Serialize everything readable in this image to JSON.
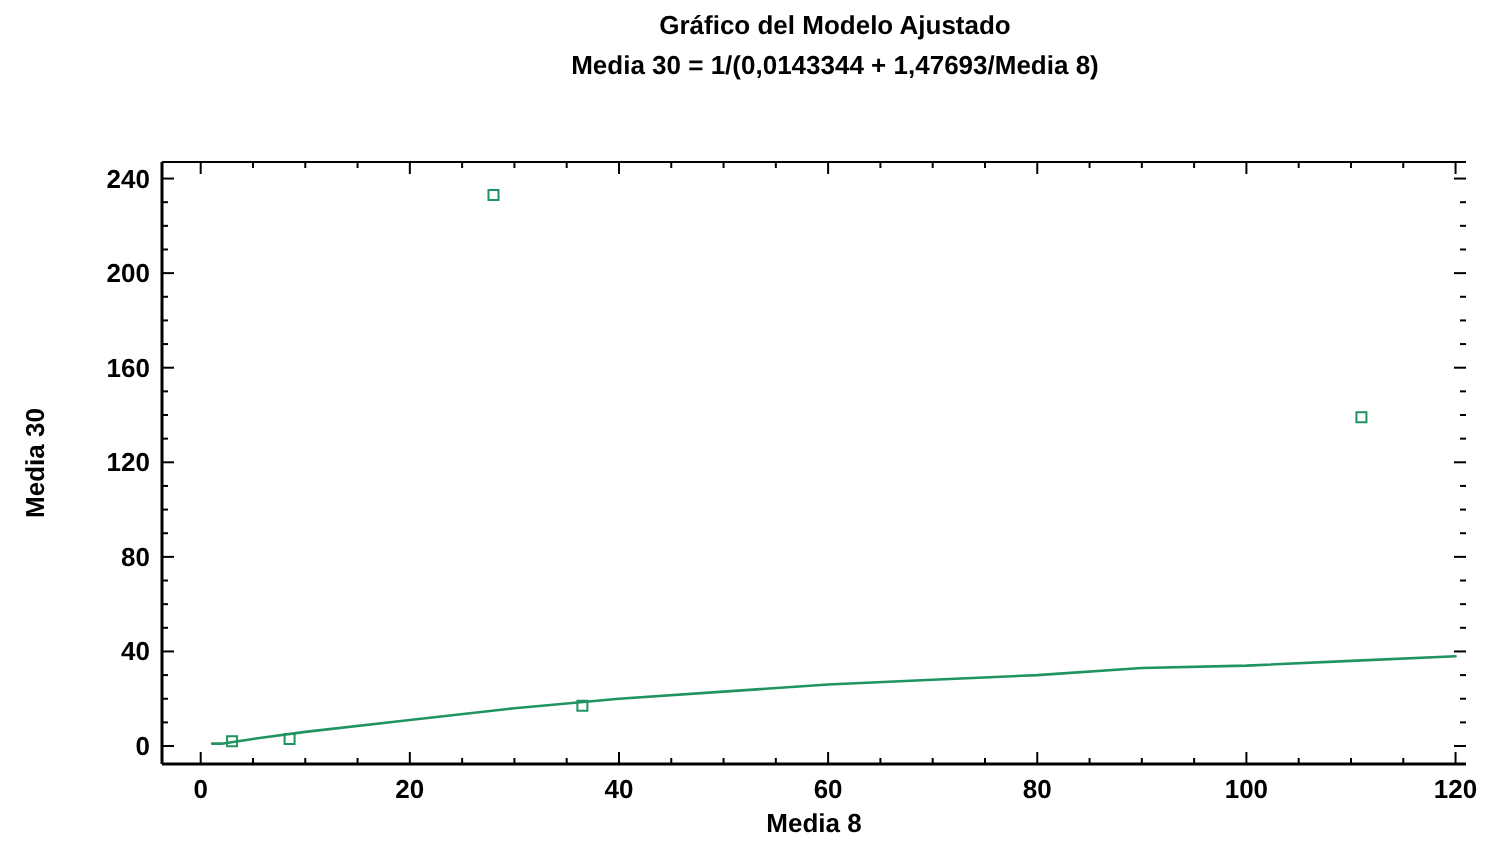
{
  "chart_data": {
    "type": "scatter",
    "title": "Gráfico del Modelo Ajustado",
    "subtitle": "Media 30 = 1/(0,0143344 + 1,47693/Media 8)",
    "xlabel": "Media 8",
    "ylabel": "Media 30",
    "xlim": [
      -3.7,
      121
    ],
    "ylim": [
      -7.6,
      247
    ],
    "xticks": [
      0,
      {
        "value": 5,
        "label": null
      },
      20,
      {
        "value": 10,
        "label": null
      },
      {
        "value": 15,
        "label": null
      },
      {
        "value": 25,
        "label": null
      },
      {
        "value": 30,
        "label": null
      },
      {
        "value": 35,
        "label": null
      },
      40,
      {
        "value": 45,
        "label": null
      },
      {
        "value": 50,
        "label": null
      },
      {
        "value": 55,
        "label": null
      },
      60,
      {
        "value": 65,
        "label": null
      },
      {
        "value": 70,
        "label": null
      },
      {
        "value": 75,
        "label": null
      },
      80,
      {
        "value": 85,
        "label": null
      },
      {
        "value": 90,
        "label": null
      },
      {
        "value": 95,
        "label": null
      },
      100,
      {
        "value": 105,
        "label": null
      },
      {
        "value": 110,
        "label": null
      },
      {
        "value": 115,
        "label": null
      },
      120
    ],
    "yticks": [
      0,
      {
        "value": 10,
        "label": null
      },
      {
        "value": 20,
        "label": null
      },
      {
        "value": 30,
        "label": null
      },
      40,
      {
        "value": 50,
        "label": null
      },
      {
        "value": 60,
        "label": null
      },
      {
        "value": 70,
        "label": null
      },
      80,
      {
        "value": 90,
        "label": null
      },
      {
        "value": 100,
        "label": null
      },
      {
        "value": 110,
        "label": null
      },
      120,
      {
        "value": 130,
        "label": null
      },
      {
        "value": 140,
        "label": null
      },
      {
        "value": 150,
        "label": null
      },
      160,
      {
        "value": 170,
        "label": null
      },
      {
        "value": 180,
        "label": null
      },
      {
        "value": 190,
        "label": null
      },
      200,
      {
        "value": 210,
        "label": null
      },
      {
        "value": 220,
        "label": null
      },
      {
        "value": 230,
        "label": null
      },
      240
    ],
    "grid": false,
    "marker": "square",
    "series": [
      {
        "color": "#1f9460",
        "x": [
          3,
          8.5,
          28,
          36.5,
          111
        ],
        "values": [
          2,
          3,
          233,
          17,
          139
        ]
      },
      {
        "type": "line",
        "color": "#1f9460",
        "marker": "none",
        "line_style": "solid",
        "x": [
          1.1,
          2,
          5,
          10,
          20,
          30,
          40,
          50,
          60,
          70,
          80,
          90,
          100,
          110,
          120
        ],
        "values": [
          1,
          1,
          3,
          6,
          11,
          16,
          20,
          23,
          26,
          28,
          30,
          33,
          34,
          36,
          38
        ]
      }
    ]
  }
}
